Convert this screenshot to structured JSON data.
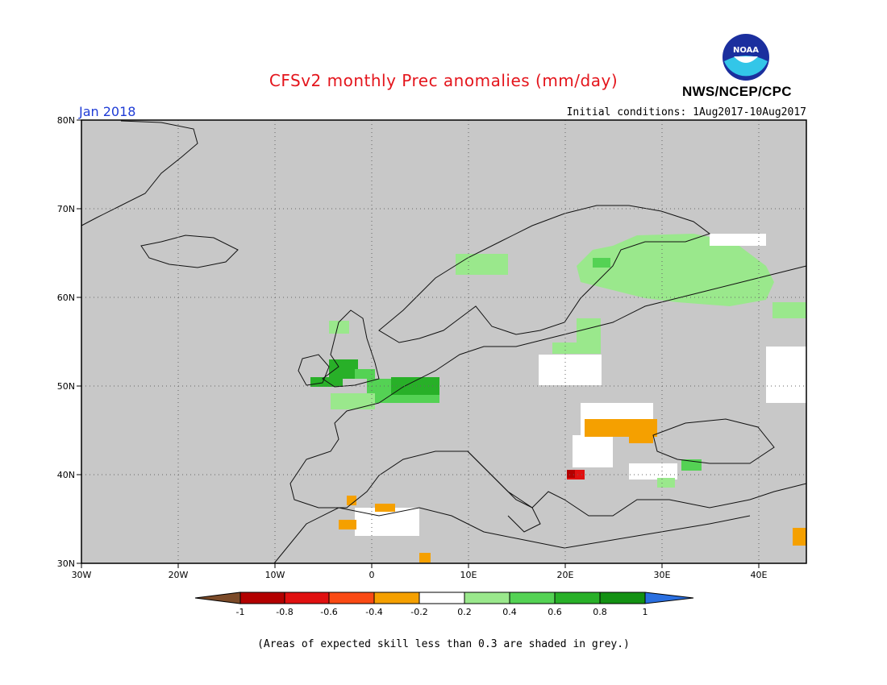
{
  "header": {
    "title": "CFSv2 monthly Prec anomalies (mm/day)",
    "agency": "NWS/NCEP/CPC",
    "logo_text": "NOAA",
    "month": "Jan 2018",
    "initial_conditions": "Initial conditions: 1Aug2017-10Aug2017"
  },
  "map": {
    "background_color": "#c8c8c8",
    "lon_range": [
      -30,
      45
    ],
    "lat_range": [
      30,
      80
    ],
    "lon_ticks": [
      "30W",
      "20W",
      "10W",
      "0",
      "10E",
      "20E",
      "30E",
      "40E"
    ],
    "lat_ticks": [
      "30N",
      "40N",
      "50N",
      "60N",
      "70N",
      "80N"
    ],
    "grid": "dotted"
  },
  "legend": {
    "tick_labels": [
      "-1",
      "-0.8",
      "-0.6",
      "-0.4",
      "-0.2",
      "0.2",
      "0.4",
      "0.6",
      "0.8",
      "1"
    ],
    "colors": [
      "#7b4a28",
      "#b30000",
      "#e01010",
      "#fa4a14",
      "#f5a000",
      "#ffffff",
      "#9ae88c",
      "#54d254",
      "#28b028",
      "#139113",
      "#2a6fe0"
    ]
  },
  "note": "(Areas of expected skill less than 0.3 are shaded in grey.)"
}
